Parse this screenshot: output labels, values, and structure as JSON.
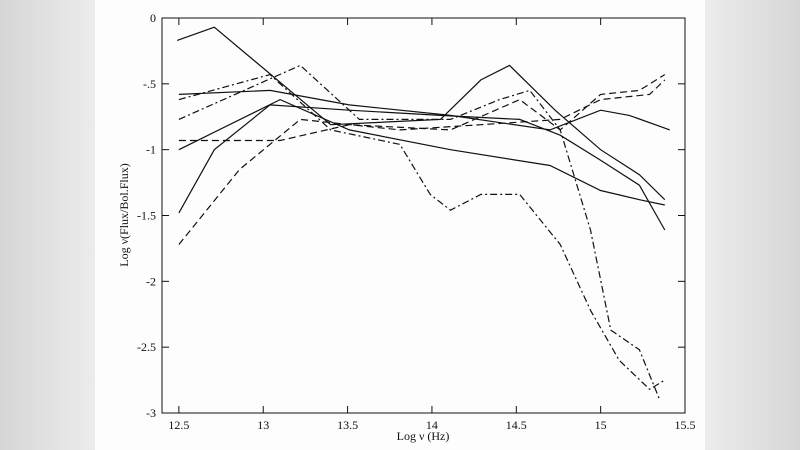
{
  "chart_data": {
    "type": "line",
    "xlabel": "Log ν (Hz)",
    "ylabel": "Log ν(Flux/Bol.Flux)",
    "xlim": [
      12.4,
      15.5
    ],
    "ylim": [
      -3,
      0
    ],
    "xticks": [
      12.5,
      13,
      13.5,
      14,
      14.5,
      15,
      15.5
    ],
    "yticks": [
      0,
      {
        "value": -0.5,
        "label": "-.5"
      },
      -1,
      -1.5,
      -2,
      -2.5,
      -3
    ],
    "series": [
      {
        "color": "#111111",
        "dash": "solid",
        "x": [
          12.49,
          12.71,
          13.4,
          14.05,
          14.29,
          14.46,
          14.73,
          15.0,
          15.23,
          15.38
        ],
        "values": [
          -0.17,
          -0.07,
          -0.81,
          -0.77,
          -0.47,
          -0.36,
          -0.7,
          -1.0,
          -1.19,
          -1.38
        ]
      },
      {
        "color": "#111111",
        "dash": "solid",
        "x": [
          12.5,
          12.71,
          13.04,
          13.51,
          14.05,
          14.52,
          14.76,
          15.0,
          15.23,
          15.38
        ],
        "values": [
          -1.48,
          -1.0,
          -0.66,
          -0.7,
          -0.74,
          -0.77,
          -0.89,
          -1.08,
          -1.27,
          -1.61
        ]
      },
      {
        "color": "#111111",
        "dash": "dashed",
        "x": [
          12.5,
          12.86,
          13.22,
          13.81,
          14.29,
          14.76,
          15.0,
          15.29,
          15.38
        ],
        "values": [
          -1.72,
          -1.15,
          -0.77,
          -0.85,
          -0.81,
          -0.77,
          -0.62,
          -0.58,
          -0.47
        ]
      },
      {
        "color": "#111111",
        "dash": "dashdot",
        "x": [
          12.5,
          13.04,
          13.4,
          13.81,
          13.99,
          14.11,
          14.29,
          14.52,
          14.76,
          14.94,
          15.11,
          15.29,
          15.38
        ],
        "values": [
          -0.62,
          -0.43,
          -0.85,
          -0.96,
          -1.34,
          -1.46,
          -1.34,
          -1.34,
          -1.72,
          -2.22,
          -2.6,
          -2.82,
          -2.75
        ]
      },
      {
        "color": "#111111",
        "dash": "dashdot",
        "x": [
          12.5,
          13.22,
          13.57,
          14.11,
          14.4,
          14.58,
          14.76,
          14.94,
          15.06,
          15.23,
          15.35
        ],
        "values": [
          -0.77,
          -0.36,
          -0.77,
          -0.77,
          -0.62,
          -0.55,
          -0.85,
          -1.61,
          -2.37,
          -2.52,
          -2.9
        ]
      },
      {
        "color": "#111111",
        "dash": "solid",
        "x": [
          12.5,
          13.04,
          13.51,
          14.11,
          14.7,
          15.0,
          15.17,
          15.41
        ],
        "values": [
          -0.58,
          -0.55,
          -0.66,
          -0.74,
          -0.85,
          -0.7,
          -0.74,
          -0.85
        ]
      },
      {
        "color": "#111111",
        "dash": "solid",
        "x": [
          12.5,
          13.1,
          13.51,
          14.11,
          14.7,
          15.0,
          15.23,
          15.38
        ],
        "values": [
          -1.0,
          -0.62,
          -0.85,
          -1.0,
          -1.12,
          -1.31,
          -1.38,
          -1.42
        ]
      },
      {
        "color": "#111111",
        "dash": "dashed",
        "x": [
          12.5,
          13.1,
          13.51,
          14.11,
          14.52,
          14.76,
          15.0,
          15.23,
          15.38
        ],
        "values": [
          -0.93,
          -0.93,
          -0.81,
          -0.85,
          -0.62,
          -0.85,
          -0.58,
          -0.55,
          -0.43
        ]
      }
    ]
  }
}
